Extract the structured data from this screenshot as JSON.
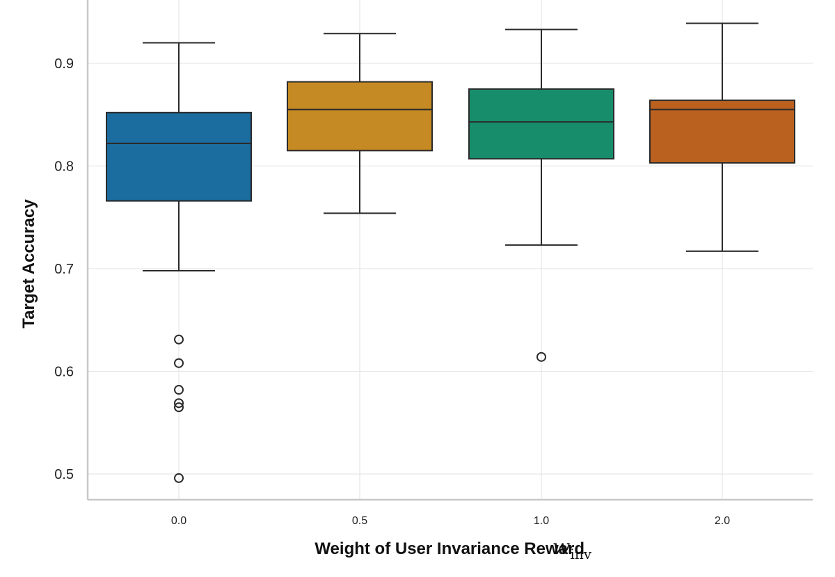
{
  "chart_data": {
    "type": "box",
    "title": "",
    "xlabel": "Weight of User Invariance Reward",
    "xlabel_symbol": "w",
    "xlabel_subscript": "inv",
    "ylabel": "Target Accuracy",
    "ylim": [
      0.475,
      0.96
    ],
    "yticks": [
      0.5,
      0.6,
      0.7,
      0.8,
      0.9
    ],
    "ytick_labels": [
      "0.5",
      "0.6",
      "0.7",
      "0.8",
      "0.9"
    ],
    "grid": true,
    "categories": [
      "0.0",
      "0.5",
      "1.0",
      "2.0"
    ],
    "boxes": [
      {
        "category": "0.0",
        "whisker_low": 0.698,
        "q1": 0.766,
        "median": 0.822,
        "q3": 0.852,
        "whisker_high": 0.92,
        "outliers": [
          0.631,
          0.608,
          0.582,
          0.569,
          0.565,
          0.496
        ],
        "color": "#1b6c9f"
      },
      {
        "category": "0.5",
        "whisker_low": 0.754,
        "q1": 0.815,
        "median": 0.855,
        "q3": 0.882,
        "whisker_high": 0.929,
        "outliers": [],
        "color": "#c58a23"
      },
      {
        "category": "1.0",
        "whisker_low": 0.723,
        "q1": 0.807,
        "median": 0.843,
        "q3": 0.875,
        "whisker_high": 0.933,
        "outliers": [
          0.614
        ],
        "color": "#178d6b"
      },
      {
        "category": "2.0",
        "whisker_low": 0.717,
        "q1": 0.803,
        "median": 0.855,
        "q3": 0.864,
        "whisker_high": 0.939,
        "outliers": [],
        "color": "#bb611f"
      }
    ]
  }
}
